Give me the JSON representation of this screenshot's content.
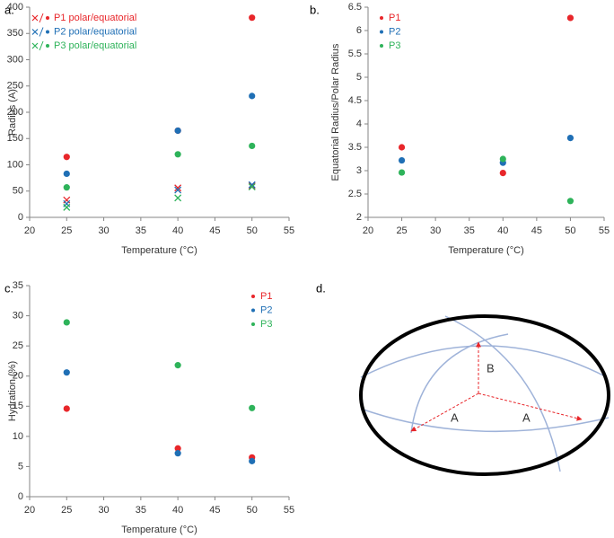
{
  "chart_data": [
    {
      "type": "scatter",
      "panel_label": "a.",
      "xlabel": "Temperature (°C)",
      "ylabel": "Radius (A)",
      "x": [
        25,
        40,
        50
      ],
      "xlim": [
        20,
        55
      ],
      "xticks": [
        20,
        25,
        30,
        35,
        40,
        45,
        50,
        55
      ],
      "ylim": [
        0,
        400
      ],
      "yticks": [
        0,
        50,
        100,
        150,
        200,
        250,
        300,
        350,
        400
      ],
      "legend": "upper left",
      "series": [
        {
          "name": "P1 polar/equatorial",
          "color": "#e8262a",
          "values": [
            115,
            165,
            380
          ],
          "polar_values": [
            33,
            56,
            60
          ]
        },
        {
          "name": "P2 polar/equatorial",
          "color": "#1f6fb5",
          "values": [
            83,
            165,
            231
          ],
          "polar_values": [
            26,
            52,
            62
          ]
        },
        {
          "name": "P3 polar/equatorial",
          "color": "#2eb35a",
          "values": [
            57,
            120,
            136
          ],
          "polar_values": [
            19,
            37,
            58
          ]
        }
      ]
    },
    {
      "type": "scatter",
      "panel_label": "b.",
      "xlabel": "Temperature (°C)",
      "ylabel": "Equatorial Radius/Polar Radius",
      "x": [
        25,
        40,
        50
      ],
      "xlim": [
        20,
        55
      ],
      "xticks": [
        20,
        25,
        30,
        35,
        40,
        45,
        50,
        55
      ],
      "ylim": [
        2,
        6.5
      ],
      "yticks": [
        2,
        2.5,
        3,
        3.5,
        4,
        4.5,
        5,
        5.5,
        6,
        6.5
      ],
      "legend": "upper left",
      "series": [
        {
          "name": "P1",
          "color": "#e8262a",
          "values": [
            3.5,
            2.95,
            6.27
          ]
        },
        {
          "name": "P2",
          "color": "#1f6fb5",
          "values": [
            3.22,
            3.17,
            3.7
          ]
        },
        {
          "name": "P3",
          "color": "#2eb35a",
          "values": [
            2.96,
            3.25,
            2.35
          ]
        }
      ]
    },
    {
      "type": "scatter",
      "panel_label": "c.",
      "xlabel": "Temperature (°C)",
      "ylabel": "Hydration (%)",
      "x": [
        25,
        40,
        50
      ],
      "xlim": [
        20,
        55
      ],
      "xticks": [
        20,
        25,
        30,
        35,
        40,
        45,
        50,
        55
      ],
      "ylim": [
        0,
        35
      ],
      "yticks": [
        0,
        5,
        10,
        15,
        20,
        25,
        30,
        35
      ],
      "legend": "upper right",
      "series": [
        {
          "name": "P1",
          "color": "#e8262a",
          "values": [
            14.6,
            8,
            6.5
          ]
        },
        {
          "name": "P2",
          "color": "#1f6fb5",
          "values": [
            20.6,
            7.2,
            5.9
          ]
        },
        {
          "name": "P3",
          "color": "#2eb35a",
          "values": [
            28.9,
            21.8,
            14.7
          ]
        }
      ]
    }
  ],
  "diagram": {
    "panel_label": "d.",
    "labels": [
      "B",
      "A",
      "A"
    ]
  }
}
